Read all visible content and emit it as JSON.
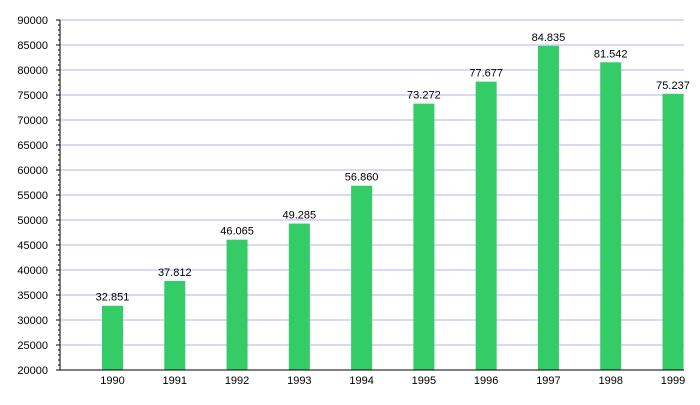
{
  "chart_data": {
    "type": "bar",
    "title": "",
    "xlabel": "",
    "ylabel": "",
    "categories": [
      "1990",
      "1991",
      "1992",
      "1993",
      "1994",
      "1995",
      "1996",
      "1997",
      "1998",
      "1999"
    ],
    "values": [
      32851,
      37812,
      46065,
      49285,
      56860,
      73272,
      77677,
      84835,
      81542,
      75237
    ],
    "data_labels": [
      "32.851",
      "37.812",
      "46.065",
      "49.285",
      "56.860",
      "73.272",
      "77.677",
      "84.835",
      "81.542",
      "75.237"
    ],
    "ylim": [
      20000,
      90000
    ],
    "yticks": [
      20000,
      25000,
      30000,
      35000,
      40000,
      45000,
      50000,
      55000,
      60000,
      65000,
      70000,
      75000,
      80000,
      85000,
      90000
    ],
    "ytick_labels": [
      "20000",
      "25000",
      "30000",
      "35000",
      "40000",
      "45000",
      "50000",
      "55000",
      "60000",
      "65000",
      "70000",
      "75000",
      "80000",
      "85000",
      "90000"
    ],
    "grid": true,
    "legend": "none",
    "colors": {
      "bar": "#33cc66",
      "grid": "#b3b3ee",
      "axis": "#000000",
      "text": "#000000"
    }
  }
}
